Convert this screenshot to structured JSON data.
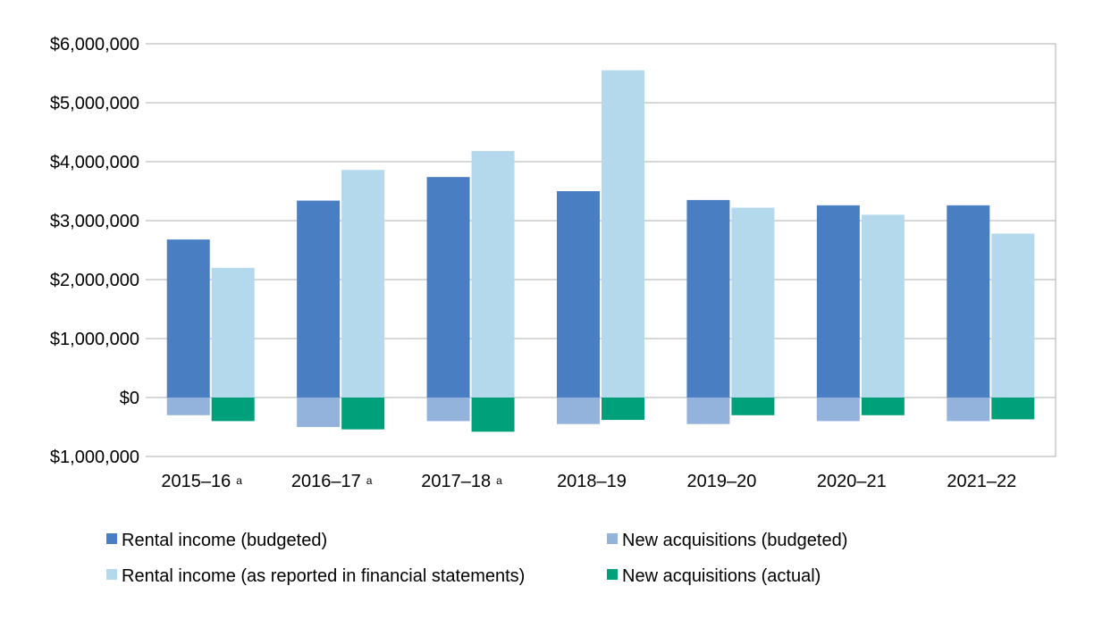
{
  "chart_data": {
    "type": "bar",
    "title": "",
    "xlabel": "",
    "ylabel": "",
    "ylim": [
      -1000000,
      6000000
    ],
    "grid": true,
    "legend_position": "bottom",
    "categories": [
      "2015–16",
      "2016–17",
      "2017–18",
      "2018–19",
      "2019–20",
      "2020–21",
      "2021–22"
    ],
    "category_notes": [
      "a",
      "a",
      "a",
      "",
      "",
      "",
      ""
    ],
    "y_ticks": [
      {
        "value": 6000000,
        "label": "$6,000,000"
      },
      {
        "value": 5000000,
        "label": "$5,000,000"
      },
      {
        "value": 4000000,
        "label": "$4,000,000"
      },
      {
        "value": 3000000,
        "label": "$3,000,000"
      },
      {
        "value": 2000000,
        "label": "$2,000,000"
      },
      {
        "value": 1000000,
        "label": "$1,000,000"
      },
      {
        "value": 0,
        "label": "$0"
      },
      {
        "value": -1000000,
        "label": "$1,000,000"
      }
    ],
    "negative_tick_color": "#FF0000",
    "series": [
      {
        "name": "Rental income (budgeted)",
        "color": "#4A7EC2",
        "values": [
          2680000,
          3340000,
          3740000,
          3500000,
          3350000,
          3260000,
          3260000
        ]
      },
      {
        "name": "Rental income (as reported in financial statements)",
        "color": "#B4D8EC",
        "values": [
          2200000,
          3860000,
          4180000,
          5550000,
          3220000,
          3100000,
          2780000
        ]
      },
      {
        "name": "New acquisitions (budgeted)",
        "color": "#93B3DC",
        "values": [
          -300000,
          -500000,
          -400000,
          -450000,
          -450000,
          -400000,
          -400000
        ]
      },
      {
        "name": "New acquisitions (actual)",
        "color": "#00A07A",
        "values": [
          -400000,
          -540000,
          -580000,
          -380000,
          -300000,
          -300000,
          -370000
        ]
      }
    ],
    "legend_order": [
      0,
      2,
      1,
      3
    ]
  }
}
